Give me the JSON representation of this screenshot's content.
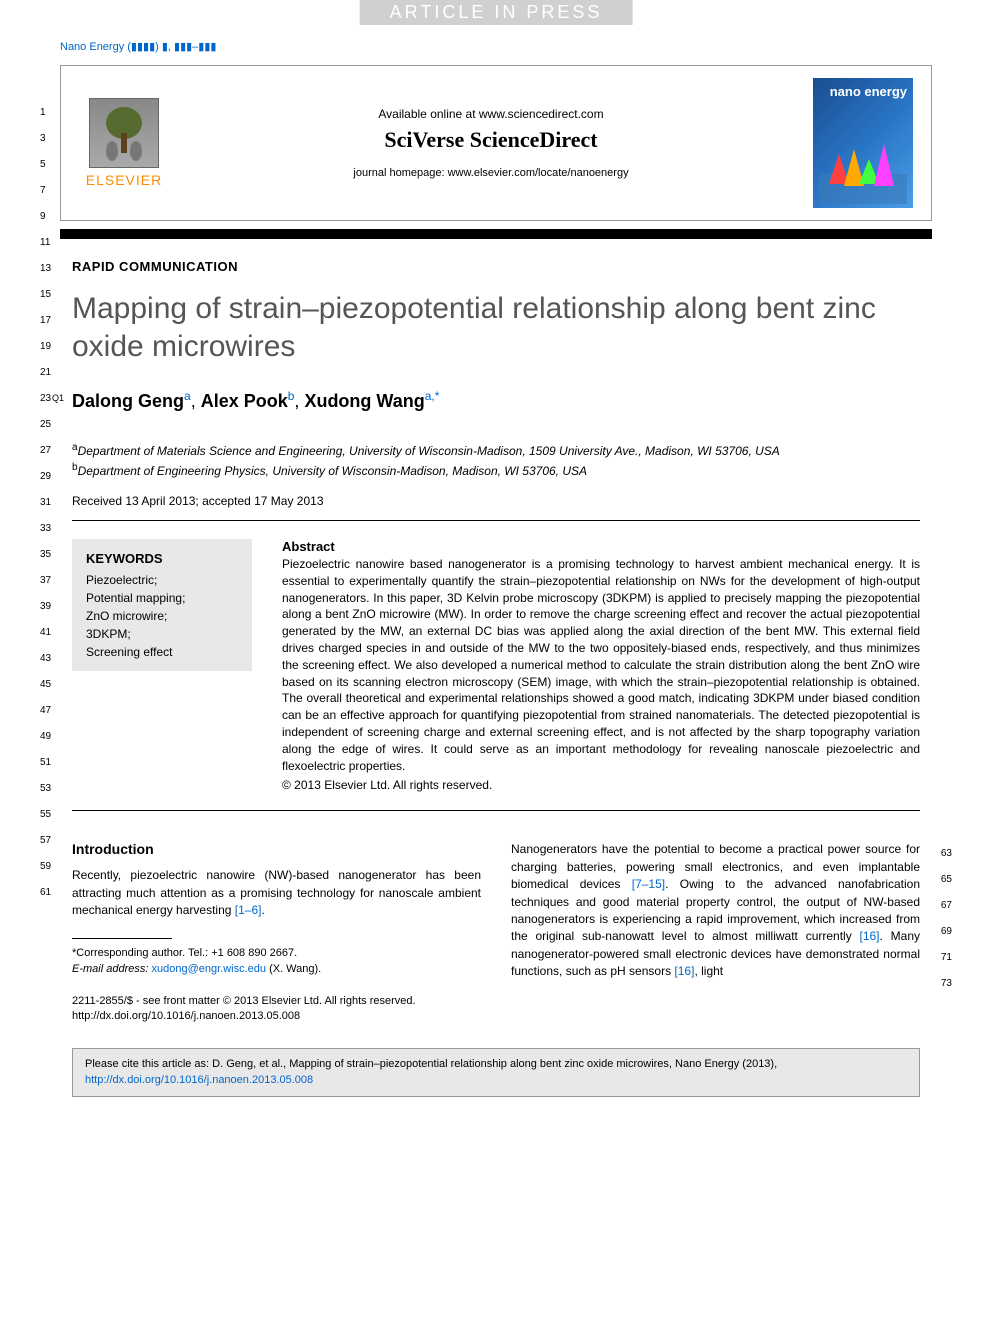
{
  "watermark": "ARTICLE IN PRESS",
  "journal_ref": "Nano Energy (▮▮▮▮) ▮, ▮▮▮–▮▮▮",
  "line_numbers_left": [
    "1",
    "3",
    "5",
    "7",
    "9",
    "11",
    "13",
    "15",
    "17",
    "19",
    "21",
    "23",
    "25",
    "27",
    "29",
    "31",
    "33",
    "35",
    "37",
    "39",
    "41",
    "43",
    "45",
    "47",
    "49",
    "51",
    "53",
    "55",
    "57",
    "59",
    "61"
  ],
  "line_numbers_right": [
    "63",
    "65",
    "67",
    "69",
    "71",
    "73"
  ],
  "q1_marker": "Q1",
  "header": {
    "elsevier": "ELSEVIER",
    "available": "Available online at www.sciencedirect.com",
    "sciverse": "SciVerse ScienceDirect",
    "homepage": "journal homepage: www.elsevier.com/locate/nanoenergy",
    "cover_title": "nano energy"
  },
  "article": {
    "type": "RAPID COMMUNICATION",
    "title": "Mapping of strain–piezopotential relationship along bent zinc oxide microwires",
    "authors_html": "Dalong Geng|a|, Alex Pook|b|, Xudong Wang|a,*|",
    "author1_name": "Dalong Geng",
    "author1_sup": "a",
    "author2_name": "Alex Pook",
    "author2_sup": "b",
    "author3_name": "Xudong Wang",
    "author3_sup": "a,*",
    "affil_a_sup": "a",
    "affil_a": "Department of Materials Science and Engineering, University of Wisconsin-Madison, 1509 University Ave., Madison, WI 53706, USA",
    "affil_b_sup": "b",
    "affil_b": "Department of Engineering Physics, University of Wisconsin-Madison, Madison, WI 53706, USA",
    "dates": "Received 13 April 2013; accepted 17 May 2013"
  },
  "keywords": {
    "heading": "KEYWORDS",
    "items": [
      "Piezoelectric;",
      "Potential mapping;",
      "ZnO microwire;",
      "3DKPM;",
      "Screening effect"
    ]
  },
  "abstract": {
    "heading": "Abstract",
    "text": "Piezoelectric nanowire based nanogenerator is a promising technology to harvest ambient mechanical energy. It is essential to experimentally quantify the strain–piezopotential relationship on NWs for the development of high-output nanogenerators. In this paper, 3D Kelvin probe microscopy (3DKPM) is applied to precisely mapping the piezopotential along a bent ZnO microwire (MW). In order to remove the charge screening effect and recover the actual piezopotential generated by the MW, an external DC bias was applied along the axial direction of the bent MW. This external field drives charged species in and outside of the MW to the two oppositely-biased ends, respectively, and thus minimizes the screening effect. We also developed a numerical method to calculate the strain distribution along the bent ZnO wire based on its scanning electron microscopy (SEM) image, with which the strain–piezopotential relationship is obtained. The overall theoretical and experimental relationships showed a good match, indicating 3DKPM under biased condition can be an effective approach for quantifying piezopotential from strained nanomaterials. The detected piezopotential is independent of screening charge and external screening effect, and is not affected by the sharp topography variation along the edge of wires. It could serve as an important methodology for revealing nanoscale piezoelectric and flexoelectric properties.",
    "copyright": "© 2013 Elsevier Ltd. All rights reserved."
  },
  "intro": {
    "heading": "Introduction",
    "col1_text": "Recently, piezoelectric nanowire (NW)-based nanogenerator has been attracting much attention as a promising technology for nanoscale ambient mechanical energy harvesting ",
    "col1_ref": "[1–6]",
    "col1_period": ".",
    "col2_text1": "Nanogenerators have the potential to become a practical power source for charging batteries, powering small electronics, and even implantable biomedical devices ",
    "col2_ref1": "[7–15]",
    "col2_text2": ". Owing to the advanced nanofabrication techniques and good material property control, the output of NW-based nanogenerators is experiencing a rapid improvement, which increased from the original sub-nanowatt level to almost milliwatt currently ",
    "col2_ref2": "[16]",
    "col2_text3": ". Many nanogenerator-powered small electronic devices have demonstrated normal functions, such as pH sensors ",
    "col2_ref3": "[16]",
    "col2_text4": ", light"
  },
  "footnote": {
    "corr": "*Corresponding author. Tel.: +1 608 890 2667.",
    "email_label": "E-mail address: ",
    "email": "xudong@engr.wisc.edu",
    "email_name": " (X. Wang)."
  },
  "front_matter": {
    "line1": "2211-2855/$ - see front matter © 2013 Elsevier Ltd. All rights reserved.",
    "doi": "http://dx.doi.org/10.1016/j.nanoen.2013.05.008"
  },
  "cite_box": {
    "text": "Please cite this article as: D. Geng, et al., Mapping of strain–piezopotential relationship along bent zinc oxide microwires, Nano Energy (2013), ",
    "link": "http://dx.doi.org/10.1016/j.nanoen.2013.05.008"
  },
  "colors": {
    "link": "#0066cc",
    "elsevier_orange": "#ff8c00",
    "keyword_bg": "#e8e8e8",
    "title_gray": "#555555"
  }
}
